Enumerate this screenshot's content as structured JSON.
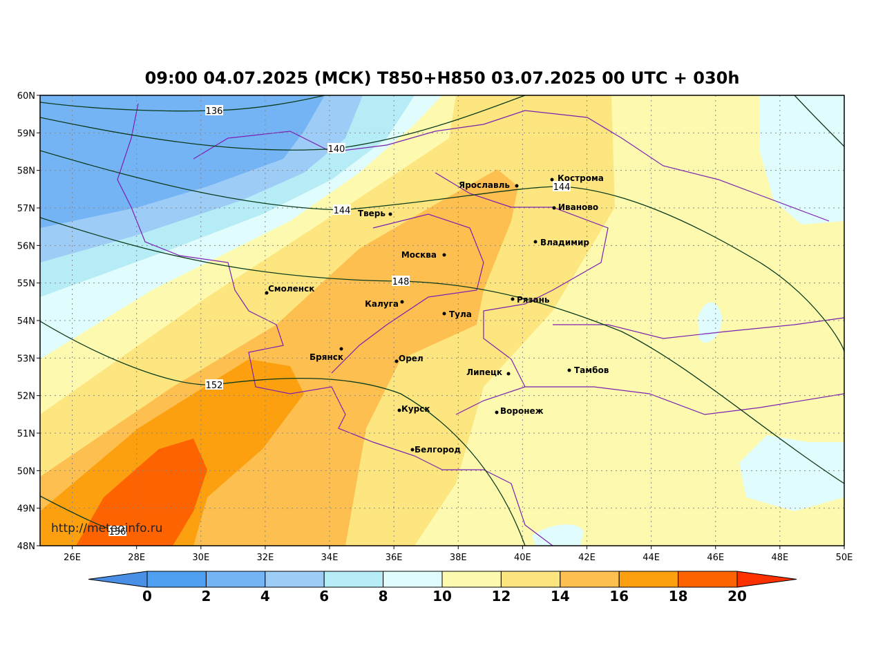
{
  "title": "09:00 04.07.2025 (МСК) T850+H850 03.07.2025 00 UTC + 030h",
  "map": {
    "lat_labels": [
      "60N",
      "59N",
      "58N",
      "57N",
      "56N",
      "55N",
      "54N",
      "53N",
      "52N",
      "51N",
      "50N",
      "49N",
      "48N"
    ],
    "lon_labels": [
      "26E",
      "28E",
      "30E",
      "32E",
      "34E",
      "36E",
      "38E",
      "40E",
      "42E",
      "44E",
      "46E",
      "48E",
      "50E"
    ],
    "cities": [
      "Кострома",
      "Ярославль",
      "Иваново",
      "Тверь",
      "Владимир",
      "Москва",
      "Смоленск",
      "Рязань",
      "Калуга",
      "Тула",
      "Брянск",
      "Орел",
      "Тамбов",
      "Липецк",
      "Курск",
      "Воронеж",
      "Белгород"
    ],
    "contour_labels": [
      "136",
      "140",
      "144",
      "144",
      "148",
      "152",
      "156"
    ],
    "watermark": "http://meteoinfo.ru"
  },
  "colorbar": {
    "ticks": [
      0,
      2,
      4,
      6,
      8,
      10,
      12,
      14,
      16,
      18,
      20
    ],
    "colors": [
      "#4a8fe6",
      "#4f9ff0",
      "#74b4f5",
      "#9dcdf7",
      "#b6ecf5",
      "#e0fcfc",
      "#fdfab0",
      "#fde680",
      "#fdbf50",
      "#fca010",
      "#fd6300",
      "#fd3000"
    ]
  }
}
